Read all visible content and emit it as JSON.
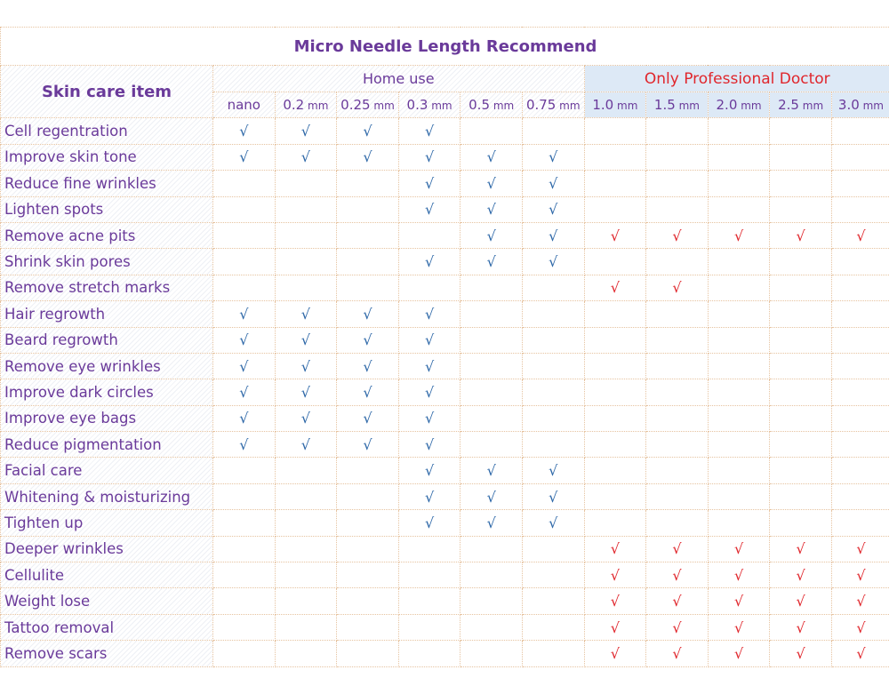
{
  "title": "Micro Needle Length Recommend",
  "header": {
    "item_label": "Skin care item",
    "home_label": "Home use",
    "pro_label": "Only Professional Doctor",
    "columns": [
      {
        "v": "nano",
        "u": ""
      },
      {
        "v": "0.2",
        "u": "mm"
      },
      {
        "v": "0.25",
        "u": "mm"
      },
      {
        "v": "0.3",
        "u": "mm"
      },
      {
        "v": "0.5",
        "u": "mm"
      },
      {
        "v": "0.75",
        "u": "mm"
      },
      {
        "v": "1.0",
        "u": "mm"
      },
      {
        "v": "1.5",
        "u": "mm"
      },
      {
        "v": "2.0",
        "u": "mm"
      },
      {
        "v": "2.5",
        "u": "mm"
      },
      {
        "v": "3.0",
        "u": "mm"
      }
    ]
  },
  "check_mark": "√",
  "colors": {
    "home_check": "#2e68a8",
    "pro_check": "#e0262c",
    "text": "#6a3a9a"
  },
  "legend_codes": {
    "b": "home-use check",
    "r": "professional check",
    "-": "empty"
  },
  "rows": [
    {
      "item": "Cell regentration",
      "marks": "bbbb-------"
    },
    {
      "item": "Improve skin tone",
      "marks": "bbbbbb-----"
    },
    {
      "item": "Reduce fine wrinkles",
      "marks": "---bbb-----"
    },
    {
      "item": "Lighten spots",
      "marks": "---bbb-----"
    },
    {
      "item": "Remove acne pits",
      "marks": "----bbrrrrr"
    },
    {
      "item": "Shrink skin pores",
      "marks": "---bbb-----"
    },
    {
      "item": "Remove stretch marks",
      "marks": "------rr---"
    },
    {
      "item": "Hair regrowth",
      "marks": "bbbb-------"
    },
    {
      "item": "Beard regrowth",
      "marks": "bbbb-------"
    },
    {
      "item": "Remove eye wrinkles",
      "marks": "bbbb-------"
    },
    {
      "item": "Improve dark circles",
      "marks": "bbbb-------"
    },
    {
      "item": "Improve eye bags",
      "marks": "bbbb-------"
    },
    {
      "item": "Reduce pigmentation",
      "marks": "bbbb-------"
    },
    {
      "item": "Facial care",
      "marks": "---bbb-----"
    },
    {
      "item": "Whitening & moisturizing",
      "marks": "---bbb-----"
    },
    {
      "item": "Tighten up",
      "marks": "---bbb-----"
    },
    {
      "item": "Deeper wrinkles",
      "marks": "------rrrrr"
    },
    {
      "item": "Cellulite",
      "marks": "------rrrrr"
    },
    {
      "item": "Weight lose",
      "marks": "------rrrrr"
    },
    {
      "item": "Tattoo removal",
      "marks": "------rrrrr"
    },
    {
      "item": "Remove scars",
      "marks": "------rrrrr"
    }
  ]
}
